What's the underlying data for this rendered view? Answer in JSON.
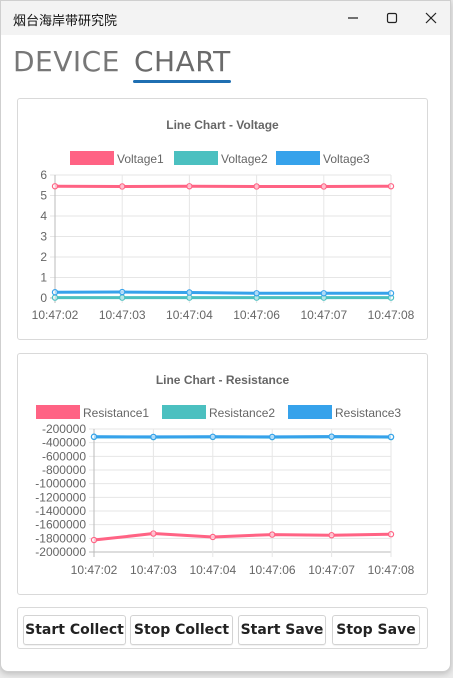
{
  "window": {
    "title": "烟台海岸带研究院"
  },
  "tabs": [
    {
      "label": "DEVICE",
      "active": false
    },
    {
      "label": "CHART",
      "active": true
    }
  ],
  "buttons": {
    "start_collect": "Start Collect",
    "stop_collect": "Stop Collect",
    "start_save": "Start Save",
    "stop_save": "Stop Save"
  },
  "colors": {
    "accent": "#1f6fb2",
    "red": "#ff6384",
    "teal": "#4bc0c0",
    "blue": "#36a2eb"
  },
  "chart_data": [
    {
      "type": "line",
      "title": "Line Chart - Voltage",
      "x": [
        "10:47:02",
        "10:47:03",
        "10:47:04",
        "10:47:06",
        "10:47:07",
        "10:47:08"
      ],
      "ylim": [
        0,
        6
      ],
      "yticks": [
        "6",
        "5",
        "4",
        "3",
        "2",
        "1",
        "0"
      ],
      "legend": "top-center",
      "grid": true,
      "series": [
        {
          "name": "Voltage1",
          "color": "#ff6384",
          "values": [
            5.45,
            5.44,
            5.45,
            5.44,
            5.44,
            5.45
          ]
        },
        {
          "name": "Voltage2",
          "color": "#4bc0c0",
          "values": [
            0.02,
            0.02,
            0.02,
            0.02,
            0.02,
            0.02
          ]
        },
        {
          "name": "Voltage3",
          "color": "#36a2eb",
          "values": [
            0.28,
            0.29,
            0.27,
            0.23,
            0.23,
            0.23
          ]
        }
      ]
    },
    {
      "type": "line",
      "title": "Line Chart - Resistance",
      "x": [
        "10:47:02",
        "10:47:03",
        "10:47:04",
        "10:47:06",
        "10:47:07",
        "10:47:08"
      ],
      "ylim": [
        -2000000,
        -200000
      ],
      "yticks": [
        "-200000",
        "-400000",
        "-600000",
        "-800000",
        "-1000000",
        "-1200000",
        "-1400000",
        "-1600000",
        "-1800000",
        "-2000000"
      ],
      "legend": "top-center",
      "grid": true,
      "series": [
        {
          "name": "Resistance1",
          "color": "#ff6384",
          "values": [
            -1825000,
            -1730000,
            -1780000,
            -1745000,
            -1755000,
            -1740000
          ]
        },
        {
          "name": "Resistance2",
          "color": "#4bc0c0",
          "values": [
            -315000,
            -318000,
            -316000,
            -318000,
            -314000,
            -318000
          ]
        },
        {
          "name": "Resistance3",
          "color": "#36a2eb",
          "values": [
            -313000,
            -316000,
            -314000,
            -316000,
            -312000,
            -316000
          ]
        }
      ]
    }
  ]
}
